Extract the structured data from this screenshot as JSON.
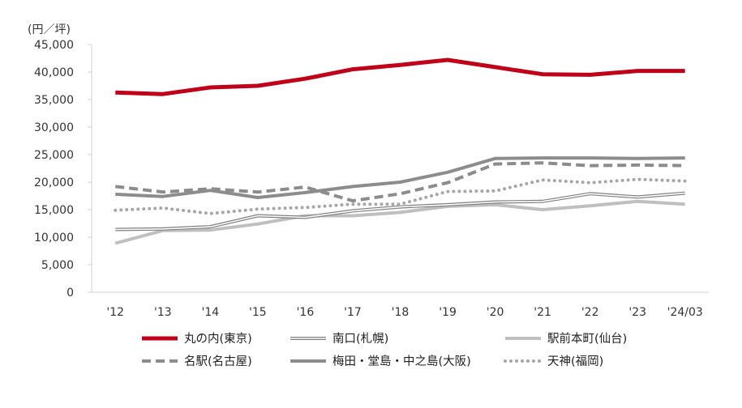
{
  "chart_data": {
    "type": "line",
    "unit_label": "(円／坪)",
    "categories": [
      "'12",
      "'13",
      "'14",
      "'15",
      "'16",
      "'17",
      "'18",
      "'19",
      "'20",
      "'21",
      "'22",
      "'23",
      "'24/03"
    ],
    "ylim": [
      0,
      45000
    ],
    "yticks": [
      0,
      5000,
      10000,
      15000,
      20000,
      25000,
      30000,
      35000,
      40000,
      45000
    ],
    "ytick_labels": [
      "0",
      "5,000",
      "10,000",
      "15,000",
      "20,000",
      "25,000",
      "30,000",
      "35,000",
      "40,000",
      "45,000"
    ],
    "grid": false,
    "legend_position": "bottom",
    "series": [
      {
        "name": "丸の内(東京)",
        "color": "#c00018",
        "style": "solid-thick",
        "values": [
          36300,
          36000,
          37200,
          37500,
          38800,
          40500,
          41300,
          42200,
          40900,
          39600,
          39500,
          40200,
          40200
        ]
      },
      {
        "name": "南口(札幌)",
        "color": "#7f7f7f",
        "style": "double",
        "values": [
          11400,
          11500,
          11900,
          13900,
          13600,
          14800,
          15500,
          15900,
          16400,
          16500,
          17900,
          17300,
          18000
        ]
      },
      {
        "name": "駅前本町(仙台)",
        "color": "#bfbfbf",
        "style": "solid",
        "values": [
          8900,
          11200,
          11300,
          12400,
          13900,
          13900,
          14500,
          15600,
          15900,
          15000,
          15700,
          16500,
          16000
        ]
      },
      {
        "name": "名駅(名古屋)",
        "color": "#8c8c8c",
        "style": "dashed",
        "values": [
          19200,
          18200,
          18800,
          18200,
          19100,
          16600,
          17900,
          19900,
          23300,
          23500,
          23000,
          23100,
          23000
        ]
      },
      {
        "name": "梅田・堂島・中之島(大阪)",
        "color": "#8c8c8c",
        "style": "solid",
        "values": [
          17800,
          17400,
          18500,
          17200,
          18100,
          19200,
          20000,
          21800,
          24300,
          24400,
          24400,
          24300,
          24400
        ]
      },
      {
        "name": "天神(福岡)",
        "color": "#a6a6a6",
        "style": "dotted",
        "values": [
          14900,
          15300,
          14300,
          15100,
          15400,
          16000,
          16000,
          18300,
          18400,
          20400,
          19900,
          20500,
          20200
        ]
      }
    ]
  }
}
